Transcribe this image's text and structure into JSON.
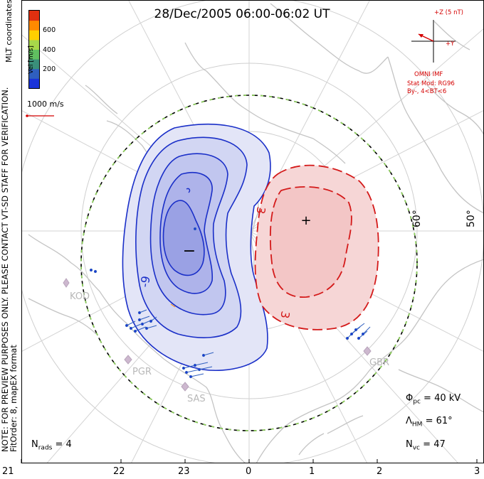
{
  "title": "28/Dec/2005 06:00-06:02 UT",
  "mlt_label": "MLT coordinates",
  "notes": {
    "line1": "NOTE: FOR PREVIEW PURPOSES ONLY. PLEASE CONTACT VT-SD STAFF FOR VERIFICATION.",
    "line2": "FitOrder: 8, mapEX format"
  },
  "colorbar": {
    "label": "Vel [m/s]",
    "ticks": [
      "600",
      "400",
      "200"
    ],
    "colors": [
      "#1a33d9",
      "#2f5fbf",
      "#3a8f7a",
      "#60c060",
      "#a8d84a",
      "#ffd000",
      "#ff8a00",
      "#e03010"
    ]
  },
  "vector_scale": {
    "label": "1000 m/s",
    "color": "#d40000"
  },
  "imf": {
    "z_label": "+Z (5 nT)",
    "y_label": "+Y",
    "source": "OMNI IMF",
    "model_line1": "Stat Mod: RG96",
    "model_line2": "By-, 4<BT<6"
  },
  "stats": {
    "phi_pc": "40 kV",
    "lambda_hm": "61°",
    "n_vc": "47",
    "n_rads": "4"
  },
  "latitude_labels": [
    "60°",
    "50°"
  ],
  "mlt_ticks": [
    "21",
    "22",
    "23",
    "0",
    "1",
    "2",
    "3"
  ],
  "sites": [
    "KOD",
    "PGR",
    "SAS",
    "GBR"
  ],
  "contour_labels": {
    "negative": "-9",
    "positive": "3",
    "positive_lower": "3"
  },
  "extrema": {
    "min": "−",
    "max": "+"
  },
  "colors": {
    "negative_fill": "#c9cdf2",
    "negative_line": "#1a2fc8",
    "positive_fill": "#f6d6d6",
    "positive_line": "#d41a1a",
    "coast": "#c4c4c4",
    "grid": "#cfcfcf",
    "boundary_dash": "#8fd65a"
  }
}
